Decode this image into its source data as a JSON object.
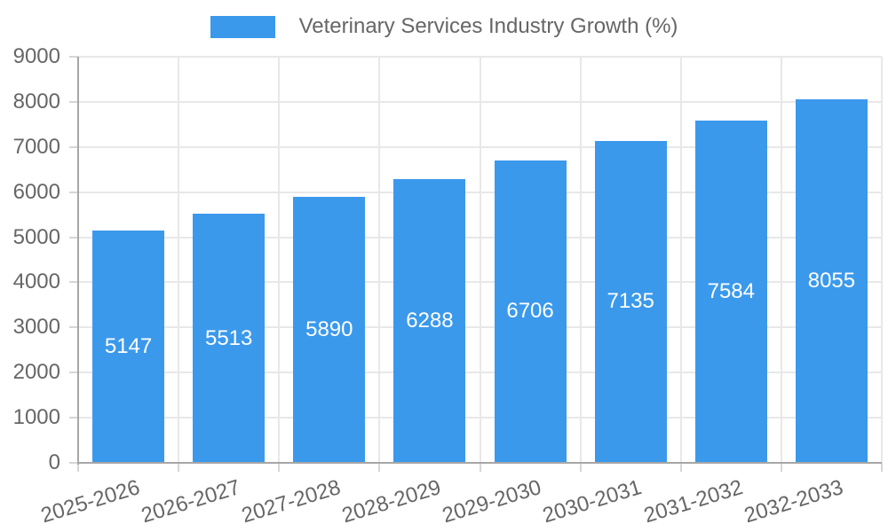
{
  "chart_data": {
    "type": "bar",
    "title": "Veterinary Services Industry Growth (%)",
    "legend": {
      "position": "top",
      "label": "Veterinary Services Industry Growth (%)"
    },
    "categories": [
      "2025-2026",
      "2026-2027",
      "2027-2028",
      "2028-2029",
      "2029-2030",
      "2030-2031",
      "2031-2032",
      "2032-2033"
    ],
    "values": [
      5147,
      5513,
      5890,
      6288,
      6706,
      7135,
      7584,
      8055
    ],
    "xlabel": "",
    "ylabel": "",
    "ylim": [
      0,
      9000
    ],
    "y_ticks": [
      0,
      1000,
      2000,
      3000,
      4000,
      5000,
      6000,
      7000,
      8000,
      9000
    ],
    "grid": true,
    "value_labels_inside_bars": true,
    "x_tick_rotation_deg": -17,
    "colors": {
      "bar": "#3b99ec",
      "value_label": "#ffffff",
      "grid_line": "#e8e8e8",
      "tick_mark": "#d6d6d6",
      "axis_line": "#a6a6a6",
      "tick_label": "#666666",
      "background": "#ffffff"
    }
  }
}
